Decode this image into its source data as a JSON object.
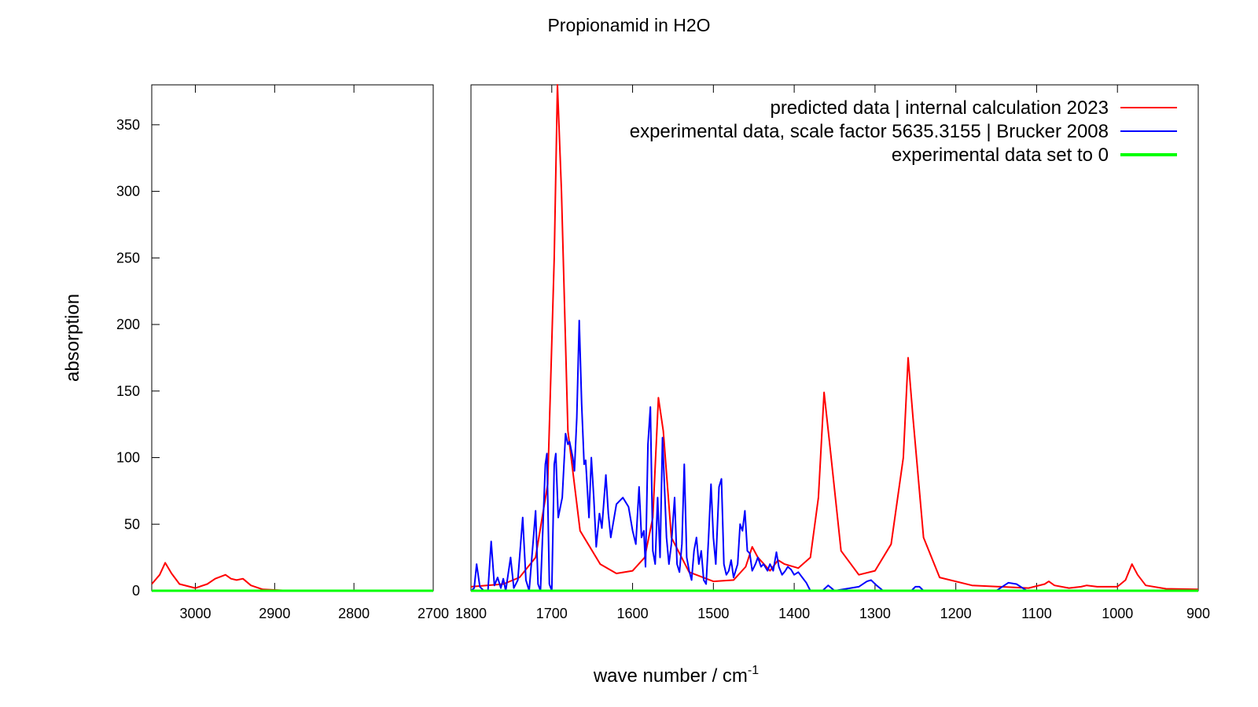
{
  "chart_data": {
    "type": "line",
    "title": "Propionamid in H2O",
    "xlabel": "wave number / cm",
    "xlabel_superscript": "-1",
    "ylabel": "absorption",
    "ylim": [
      0,
      380
    ],
    "y_ticks": [
      0,
      50,
      100,
      150,
      200,
      250,
      300,
      350
    ],
    "y_tick_labels": [
      "0",
      "50",
      "100",
      "150",
      "200",
      "250",
      "300",
      "350"
    ],
    "x_axis_reversed": true,
    "panels": [
      {
        "xlim": [
          3055,
          2700
        ],
        "x_ticks": [
          3000,
          2900,
          2800,
          2700
        ],
        "x_tick_labels": [
          "3000",
          "2900",
          "2800",
          "2700"
        ]
      },
      {
        "xlim": [
          1800,
          900
        ],
        "x_ticks": [
          1800,
          1700,
          1600,
          1500,
          1400,
          1300,
          1200,
          1100,
          1000,
          900
        ],
        "x_tick_labels": [
          "1800",
          "1700",
          "1600",
          "1500",
          "1400",
          "1300",
          "1200",
          "1100",
          "1000",
          "900"
        ]
      }
    ],
    "legend_position": "top-right",
    "grid": false,
    "series": [
      {
        "name": "predicted data | internal calculation 2023",
        "color": "#ff0000",
        "points": [
          [
            3055,
            5
          ],
          [
            3045,
            12
          ],
          [
            3038,
            21
          ],
          [
            3030,
            13
          ],
          [
            3020,
            5
          ],
          [
            3000,
            2
          ],
          [
            2985,
            5
          ],
          [
            2975,
            9
          ],
          [
            2962,
            12
          ],
          [
            2955,
            9
          ],
          [
            2948,
            8
          ],
          [
            2940,
            9
          ],
          [
            2930,
            4
          ],
          [
            2915,
            1
          ],
          [
            2880,
            0
          ],
          [
            2700,
            0
          ],
          [
            1800,
            3
          ],
          [
            1760,
            5
          ],
          [
            1740,
            10
          ],
          [
            1720,
            25
          ],
          [
            1705,
            80
          ],
          [
            1697,
            250
          ],
          [
            1693,
            380
          ],
          [
            1688,
            300
          ],
          [
            1680,
            120
          ],
          [
            1665,
            45
          ],
          [
            1640,
            20
          ],
          [
            1620,
            13
          ],
          [
            1600,
            15
          ],
          [
            1585,
            25
          ],
          [
            1575,
            55
          ],
          [
            1568,
            145
          ],
          [
            1562,
            120
          ],
          [
            1552,
            40
          ],
          [
            1530,
            14
          ],
          [
            1500,
            7
          ],
          [
            1475,
            8
          ],
          [
            1460,
            18
          ],
          [
            1452,
            33
          ],
          [
            1445,
            25
          ],
          [
            1430,
            15
          ],
          [
            1420,
            23
          ],
          [
            1412,
            20
          ],
          [
            1395,
            17
          ],
          [
            1380,
            25
          ],
          [
            1370,
            70
          ],
          [
            1363,
            149
          ],
          [
            1356,
            110
          ],
          [
            1342,
            30
          ],
          [
            1320,
            12
          ],
          [
            1300,
            15
          ],
          [
            1280,
            35
          ],
          [
            1265,
            100
          ],
          [
            1259,
            175
          ],
          [
            1253,
            130
          ],
          [
            1240,
            40
          ],
          [
            1220,
            10
          ],
          [
            1180,
            4
          ],
          [
            1110,
            2
          ],
          [
            1090,
            5
          ],
          [
            1085,
            7
          ],
          [
            1078,
            4
          ],
          [
            1060,
            2
          ],
          [
            1045,
            3
          ],
          [
            1038,
            4
          ],
          [
            1025,
            3
          ],
          [
            1000,
            3
          ],
          [
            990,
            8
          ],
          [
            982,
            20
          ],
          [
            975,
            12
          ],
          [
            965,
            4
          ],
          [
            940,
            1.5
          ],
          [
            900,
            1
          ]
        ]
      },
      {
        "name": "experimental data, scale factor 5635.3155 | Brucker 2008",
        "color": "#0000ff",
        "points": [
          [
            1800,
            0
          ],
          [
            1796,
            2
          ],
          [
            1793,
            20
          ],
          [
            1789,
            3
          ],
          [
            1784,
            0
          ],
          [
            1779,
            0
          ],
          [
            1775,
            37
          ],
          [
            1771,
            4
          ],
          [
            1767,
            10
          ],
          [
            1763,
            2
          ],
          [
            1760,
            9
          ],
          [
            1757,
            0
          ],
          [
            1751,
            25
          ],
          [
            1747,
            2
          ],
          [
            1742,
            8
          ],
          [
            1736,
            55
          ],
          [
            1732,
            8
          ],
          [
            1728,
            0
          ],
          [
            1722,
            45
          ],
          [
            1720,
            60
          ],
          [
            1717,
            5
          ],
          [
            1714,
            0
          ],
          [
            1708,
            95
          ],
          [
            1706,
            103
          ],
          [
            1703,
            5
          ],
          [
            1700,
            0
          ],
          [
            1697,
            95
          ],
          [
            1695,
            103
          ],
          [
            1692,
            55
          ],
          [
            1687,
            70
          ],
          [
            1683,
            118
          ],
          [
            1680,
            110
          ],
          [
            1678,
            112
          ],
          [
            1674,
            100
          ],
          [
            1672,
            90
          ],
          [
            1669,
            130
          ],
          [
            1666,
            203
          ],
          [
            1663,
            140
          ],
          [
            1660,
            95
          ],
          [
            1658,
            98
          ],
          [
            1654,
            55
          ],
          [
            1651,
            100
          ],
          [
            1648,
            70
          ],
          [
            1645,
            33
          ],
          [
            1641,
            58
          ],
          [
            1638,
            47
          ],
          [
            1633,
            87
          ],
          [
            1630,
            58
          ],
          [
            1627,
            40
          ],
          [
            1620,
            65
          ],
          [
            1612,
            70
          ],
          [
            1605,
            63
          ],
          [
            1600,
            45
          ],
          [
            1596,
            35
          ],
          [
            1592,
            78
          ],
          [
            1589,
            40
          ],
          [
            1586,
            45
          ],
          [
            1584,
            18
          ],
          [
            1581,
            110
          ],
          [
            1578,
            138
          ],
          [
            1575,
            30
          ],
          [
            1572,
            20
          ],
          [
            1569,
            70
          ],
          [
            1566,
            25
          ],
          [
            1563,
            115
          ],
          [
            1560,
            70
          ],
          [
            1558,
            40
          ],
          [
            1555,
            20
          ],
          [
            1552,
            35
          ],
          [
            1548,
            70
          ],
          [
            1545,
            20
          ],
          [
            1542,
            14
          ],
          [
            1539,
            35
          ],
          [
            1536,
            95
          ],
          [
            1533,
            25
          ],
          [
            1530,
            15
          ],
          [
            1527,
            8
          ],
          [
            1524,
            30
          ],
          [
            1521,
            40
          ],
          [
            1518,
            20
          ],
          [
            1515,
            30
          ],
          [
            1512,
            8
          ],
          [
            1509,
            5
          ],
          [
            1506,
            40
          ],
          [
            1503,
            80
          ],
          [
            1500,
            40
          ],
          [
            1497,
            20
          ],
          [
            1493,
            78
          ],
          [
            1490,
            84
          ],
          [
            1487,
            20
          ],
          [
            1484,
            12
          ],
          [
            1481,
            15
          ],
          [
            1478,
            23
          ],
          [
            1475,
            10
          ],
          [
            1470,
            20
          ],
          [
            1467,
            50
          ],
          [
            1464,
            45
          ],
          [
            1461,
            60
          ],
          [
            1458,
            30
          ],
          [
            1455,
            28
          ],
          [
            1452,
            15
          ],
          [
            1448,
            20
          ],
          [
            1445,
            25
          ],
          [
            1441,
            18
          ],
          [
            1438,
            20
          ],
          [
            1433,
            15
          ],
          [
            1430,
            20
          ],
          [
            1426,
            15
          ],
          [
            1422,
            29
          ],
          [
            1419,
            18
          ],
          [
            1415,
            12
          ],
          [
            1411,
            15
          ],
          [
            1408,
            18
          ],
          [
            1404,
            16
          ],
          [
            1400,
            12
          ],
          [
            1395,
            14
          ],
          [
            1390,
            10
          ],
          [
            1385,
            6
          ],
          [
            1380,
            0
          ],
          [
            1365,
            0
          ],
          [
            1358,
            4
          ],
          [
            1350,
            0
          ],
          [
            1320,
            3
          ],
          [
            1310,
            7
          ],
          [
            1305,
            8
          ],
          [
            1298,
            4
          ],
          [
            1290,
            0
          ],
          [
            1255,
            0
          ],
          [
            1250,
            3
          ],
          [
            1245,
            3
          ],
          [
            1240,
            0
          ],
          [
            1150,
            0
          ],
          [
            1135,
            6
          ],
          [
            1125,
            5
          ],
          [
            1112,
            0
          ],
          [
            900,
            0
          ]
        ]
      },
      {
        "name": "experimental data set to 0",
        "color": "#00ff00",
        "points": [
          [
            3055,
            0
          ],
          [
            2700,
            0
          ],
          [
            1800,
            0
          ],
          [
            900,
            0
          ]
        ]
      }
    ]
  }
}
